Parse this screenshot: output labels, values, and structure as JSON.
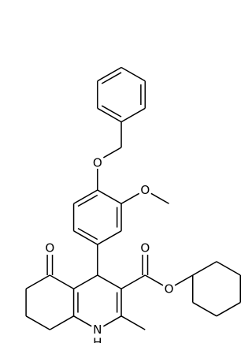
{
  "labels": {
    "benzyl_ether_oxygen": "O",
    "methoxy_oxygen": "O",
    "ketone_oxygen": "O",
    "ester_carbonyl_oxygen": "O",
    "ester_oxygen": "O",
    "ring_nitrogen": "N",
    "nitrogen_hydrogen": "H"
  }
}
